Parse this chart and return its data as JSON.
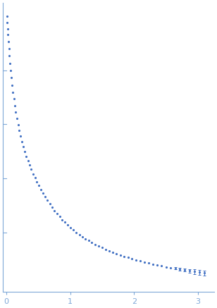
{
  "dot_color": "#4472c4",
  "dot_size": 2.5,
  "axis_color": "#7fa8d8",
  "tick_color": "#7fa8d8",
  "background_color": "#ffffff",
  "xlim": [
    -0.05,
    3.25
  ],
  "ylim": [
    -0.02,
    1.05
  ],
  "x_ticks": [
    0,
    1,
    2,
    3
  ],
  "q_values": [
    0.012,
    0.017,
    0.022,
    0.028,
    0.035,
    0.043,
    0.051,
    0.06,
    0.07,
    0.081,
    0.093,
    0.106,
    0.12,
    0.135,
    0.151,
    0.168,
    0.186,
    0.205,
    0.225,
    0.246,
    0.268,
    0.291,
    0.315,
    0.34,
    0.366,
    0.393,
    0.421,
    0.45,
    0.48,
    0.511,
    0.543,
    0.576,
    0.61,
    0.645,
    0.681,
    0.718,
    0.756,
    0.795,
    0.835,
    0.876,
    0.918,
    0.961,
    1.005,
    1.05,
    1.096,
    1.143,
    1.191,
    1.24,
    1.29,
    1.341,
    1.393,
    1.446,
    1.5,
    1.555,
    1.611,
    1.668,
    1.726,
    1.785,
    1.845,
    1.906,
    1.968,
    2.031,
    2.095,
    2.16,
    2.226,
    2.293,
    2.361,
    2.43,
    2.5,
    2.571,
    2.643,
    2.716,
    2.79,
    2.865,
    2.941,
    3.018,
    3.096
  ],
  "intensity": [
    1.0,
    0.978,
    0.955,
    0.932,
    0.907,
    0.881,
    0.854,
    0.827,
    0.8,
    0.773,
    0.746,
    0.72,
    0.694,
    0.669,
    0.645,
    0.621,
    0.599,
    0.578,
    0.557,
    0.537,
    0.518,
    0.5,
    0.482,
    0.465,
    0.449,
    0.433,
    0.417,
    0.402,
    0.387,
    0.373,
    0.359,
    0.345,
    0.331,
    0.318,
    0.305,
    0.293,
    0.281,
    0.269,
    0.258,
    0.247,
    0.237,
    0.227,
    0.218,
    0.209,
    0.2,
    0.192,
    0.184,
    0.176,
    0.169,
    0.162,
    0.155,
    0.149,
    0.143,
    0.137,
    0.131,
    0.126,
    0.121,
    0.116,
    0.111,
    0.107,
    0.102,
    0.098,
    0.094,
    0.09,
    0.086,
    0.082,
    0.079,
    0.075,
    0.072,
    0.069,
    0.066,
    0.063,
    0.06,
    0.057,
    0.054,
    0.052,
    0.049
  ],
  "yerr": [
    0.0,
    0.0,
    0.0,
    0.0,
    0.0,
    0.0,
    0.0,
    0.0,
    0.0,
    0.0,
    0.0,
    0.0,
    0.0,
    0.0,
    0.0,
    0.0,
    0.0,
    0.0,
    0.0,
    0.0,
    0.0,
    0.0,
    0.0,
    0.0,
    0.0,
    0.0,
    0.0,
    0.0,
    0.0,
    0.0,
    0.0,
    0.0,
    0.0,
    0.0,
    0.0,
    0.0,
    0.0,
    0.0,
    0.0,
    0.0,
    0.0,
    0.0,
    0.0,
    0.0,
    0.0,
    0.0,
    0.0,
    0.0,
    0.0,
    0.0,
    0.0,
    0.0,
    0.0,
    0.0,
    0.0,
    0.0,
    0.0,
    0.0,
    0.0,
    0.0,
    0.0,
    0.0,
    0.0,
    0.0,
    0.0,
    0.0,
    0.0,
    0.0,
    0.0,
    0.0,
    0.004,
    0.005,
    0.006,
    0.007,
    0.008,
    0.009,
    0.01
  ]
}
